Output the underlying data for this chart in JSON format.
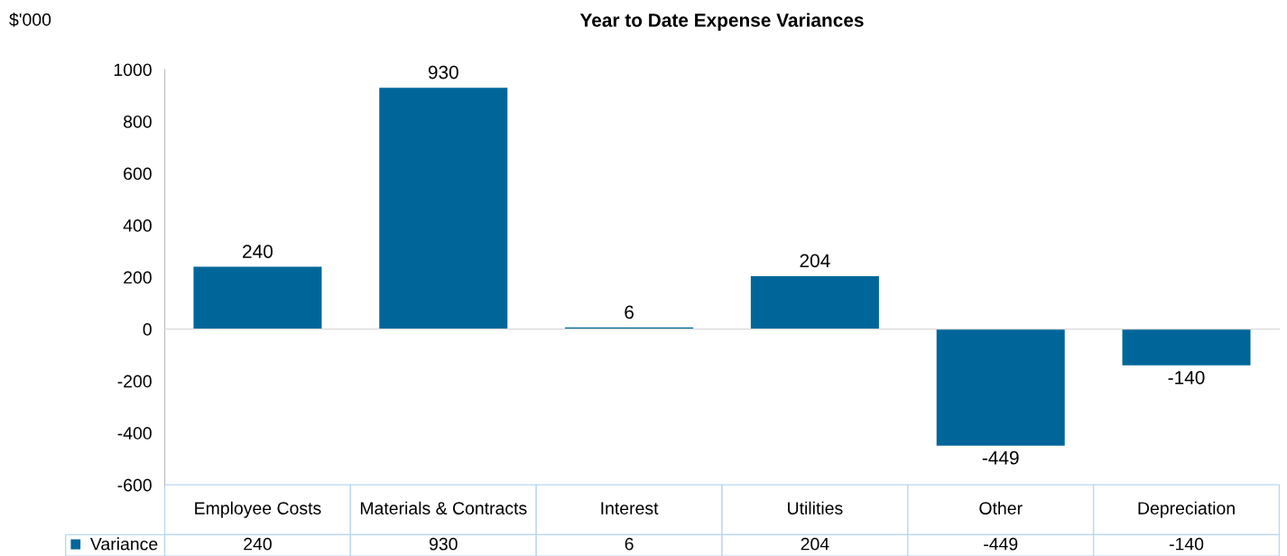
{
  "chart_data": {
    "type": "bar",
    "title": "Year to Date Expense Variances",
    "ylabel": "$'000",
    "categories": [
      "Employee Costs",
      "Materials & Contracts",
      "Interest",
      "Utilities",
      "Other",
      "Depreciation"
    ],
    "series": [
      {
        "name": "Variance",
        "color": "#006699",
        "values": [
          240,
          930,
          6,
          204,
          -449,
          -140
        ],
        "value_labels": [
          "240",
          "930",
          "6",
          "204",
          "-449",
          "-140"
        ]
      }
    ],
    "ylim": [
      -600,
      1000
    ],
    "yticks": [
      -600,
      -400,
      -200,
      0,
      200,
      400,
      600,
      800,
      1000
    ],
    "annotations": [
      "240",
      "930",
      "6",
      "204",
      "-449",
      "-140"
    ],
    "legend": "bottom"
  }
}
